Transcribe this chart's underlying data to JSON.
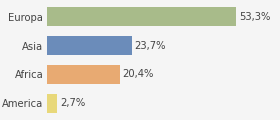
{
  "categories": [
    "America",
    "Africa",
    "Asia",
    "Europa"
  ],
  "values": [
    2.7,
    20.4,
    23.7,
    53.3
  ],
  "labels": [
    "2,7%",
    "20,4%",
    "23,7%",
    "53,3%"
  ],
  "bar_colors": [
    "#e8d87a",
    "#e8aa72",
    "#6b8cba",
    "#a8bb8a"
  ],
  "background_color": "#f5f5f5",
  "xlim": [
    0,
    65
  ],
  "label_fontsize": 7.2,
  "tick_fontsize": 7.2
}
